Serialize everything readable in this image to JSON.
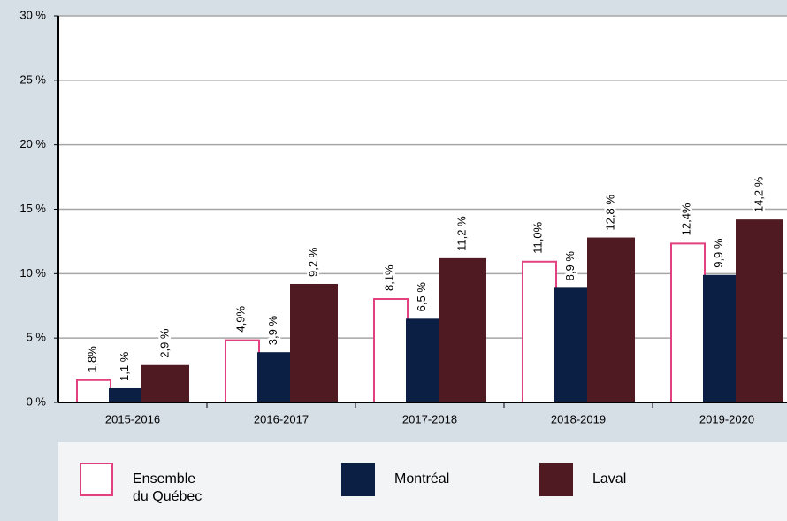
{
  "chart_data": {
    "type": "bar",
    "categories": [
      "2015-2016",
      "2016-2017",
      "2017-2018",
      "2018-2019",
      "2019-2020"
    ],
    "series": [
      {
        "name": "Ensemble du Québec",
        "color": "#e2407f",
        "values": [
          1.8,
          4.9,
          8.1,
          11.0,
          12.4
        ],
        "value_labels": [
          "1,8%",
          "4,9%",
          "8,1%",
          "11,0%",
          "12,4%"
        ]
      },
      {
        "name": "Montréal",
        "color": "#0b1f45",
        "values": [
          1.1,
          3.9,
          6.5,
          8.9,
          9.9
        ],
        "value_labels": [
          "1,1 %",
          "3,9 %",
          "6,5 %",
          "8,9 %",
          "9,9 %"
        ]
      },
      {
        "name": "Laval",
        "color": "#4f1a22",
        "values": [
          2.9,
          9.2,
          11.2,
          12.8,
          14.2
        ],
        "value_labels": [
          "2,9 %",
          "9,2 %",
          "11,2 %",
          "12,8 %",
          "14,2 %"
        ]
      }
    ],
    "ylim": [
      0,
      30
    ],
    "yticks": [
      {
        "value": 0,
        "label": "0 %"
      },
      {
        "value": 5,
        "label": "5 %"
      },
      {
        "value": 10,
        "label": "10 %"
      },
      {
        "value": 15,
        "label": "15 %"
      },
      {
        "value": 20,
        "label": "20 %"
      },
      {
        "value": 25,
        "label": "25 %"
      },
      {
        "value": 30,
        "label": "30 %"
      }
    ],
    "grid": true,
    "legend": "bottom"
  }
}
